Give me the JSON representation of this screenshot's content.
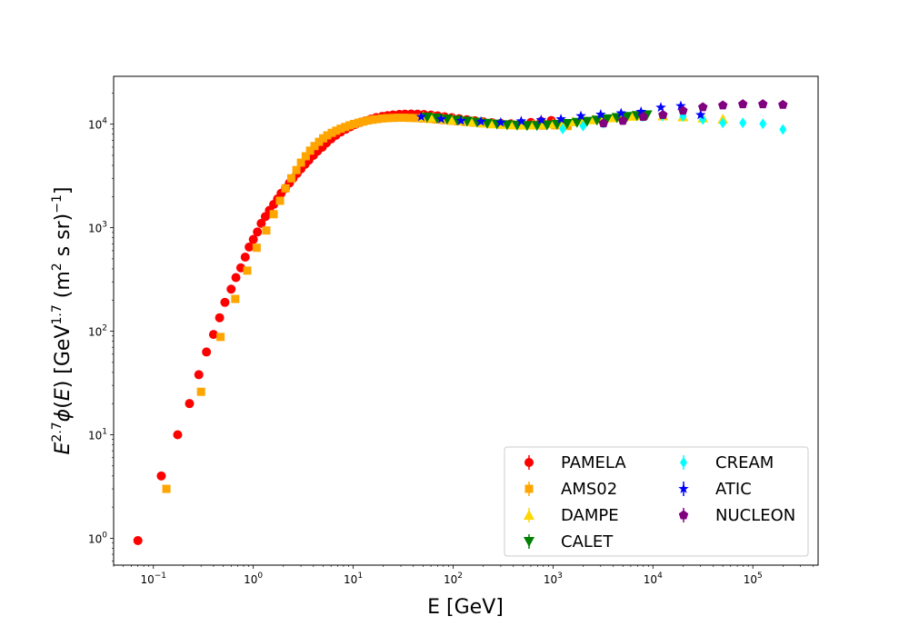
{
  "chart_data": {
    "type": "scatter",
    "xlabel": "E [GeV]",
    "ylabel": "E^{2.7}φ(E) [GeV^{1.7} (m^{2} s sr)^{-1}]",
    "xscale": "log",
    "yscale": "log",
    "xlim": [
      0.04,
      450000
    ],
    "ylim": [
      0.55,
      29000
    ],
    "x_ticks": [
      {
        "base": "10",
        "exp": "−1",
        "value": 0.1
      },
      {
        "base": "10",
        "exp": "0",
        "value": 1
      },
      {
        "base": "10",
        "exp": "1",
        "value": 10
      },
      {
        "base": "10",
        "exp": "2",
        "value": 100
      },
      {
        "base": "10",
        "exp": "3",
        "value": 1000
      },
      {
        "base": "10",
        "exp": "4",
        "value": 10000
      },
      {
        "base": "10",
        "exp": "5",
        "value": 100000
      }
    ],
    "y_ticks": [
      {
        "base": "10",
        "exp": "0",
        "value": 1
      },
      {
        "base": "10",
        "exp": "1",
        "value": 10
      },
      {
        "base": "10",
        "exp": "2",
        "value": 100
      },
      {
        "base": "10",
        "exp": "3",
        "value": 1000
      },
      {
        "base": "10",
        "exp": "4",
        "value": 10000
      }
    ],
    "grid": false,
    "legend_position": "lower-right",
    "legend_columns": 2,
    "series": [
      {
        "name": "PAMELA",
        "color": "#ff0000",
        "marker": "circle",
        "points": [
          [
            0.07,
            0.95
          ],
          [
            0.12,
            4
          ],
          [
            0.175,
            10
          ],
          [
            0.23,
            20
          ],
          [
            0.285,
            38
          ],
          [
            0.34,
            63
          ],
          [
            0.4,
            93
          ],
          [
            0.46,
            135
          ],
          [
            0.52,
            190
          ],
          [
            0.6,
            255
          ],
          [
            0.67,
            330
          ],
          [
            0.75,
            410
          ],
          [
            0.83,
            520
          ],
          [
            0.91,
            650
          ],
          [
            1.0,
            770
          ],
          [
            1.1,
            910
          ],
          [
            1.2,
            1100
          ],
          [
            1.32,
            1280
          ],
          [
            1.45,
            1470
          ],
          [
            1.6,
            1680
          ],
          [
            1.75,
            1900
          ],
          [
            1.9,
            2150
          ],
          [
            2.1,
            2400
          ],
          [
            2.3,
            2700
          ],
          [
            2.5,
            3000
          ],
          [
            2.75,
            3350
          ],
          [
            3.0,
            3700
          ],
          [
            3.3,
            4100
          ],
          [
            3.6,
            4500
          ],
          [
            4.0,
            5000
          ],
          [
            4.4,
            5500
          ],
          [
            4.9,
            6000
          ],
          [
            5.4,
            6600
          ],
          [
            6.0,
            7200
          ],
          [
            6.7,
            7800
          ],
          [
            7.5,
            8400
          ],
          [
            8.4,
            8950
          ],
          [
            9.4,
            9450
          ],
          [
            10.5,
            9950
          ],
          [
            11.8,
            10400
          ],
          [
            13.3,
            10800
          ],
          [
            15,
            11200
          ],
          [
            17,
            11600
          ],
          [
            19.5,
            11900
          ],
          [
            22,
            12100
          ],
          [
            25,
            12300
          ],
          [
            29,
            12450
          ],
          [
            33,
            12500
          ],
          [
            38,
            12550
          ],
          [
            44,
            12500
          ],
          [
            51,
            12400
          ],
          [
            60,
            12250
          ],
          [
            70,
            12050
          ],
          [
            82,
            11800
          ],
          [
            97,
            11550
          ],
          [
            115,
            11300
          ],
          [
            137,
            11050
          ],
          [
            165,
            10800
          ],
          [
            200,
            10550
          ],
          [
            245,
            10350
          ],
          [
            300,
            10200
          ],
          [
            380,
            10100
          ],
          [
            480,
            10150
          ],
          [
            600,
            10400
          ],
          [
            760,
            10650
          ],
          [
            960,
            10850
          ]
        ]
      },
      {
        "name": "AMS02",
        "color": "#ffa500",
        "marker": "square",
        "points": [
          [
            0.135,
            3
          ],
          [
            0.3,
            26
          ],
          [
            0.47,
            88
          ],
          [
            0.66,
            205
          ],
          [
            0.87,
            385
          ],
          [
            1.08,
            640
          ],
          [
            1.35,
            940
          ],
          [
            1.6,
            1350
          ],
          [
            1.85,
            1820
          ],
          [
            2.1,
            2400
          ],
          [
            2.4,
            3000
          ],
          [
            2.7,
            3600
          ],
          [
            3.0,
            4250
          ],
          [
            3.35,
            4900
          ],
          [
            3.7,
            5550
          ],
          [
            4.1,
            6150
          ],
          [
            4.55,
            6750
          ],
          [
            5.0,
            7300
          ],
          [
            5.5,
            7800
          ],
          [
            6.1,
            8250
          ],
          [
            6.75,
            8650
          ],
          [
            7.5,
            9050
          ],
          [
            8.3,
            9400
          ],
          [
            9.2,
            9750
          ],
          [
            10.2,
            10050
          ],
          [
            11.3,
            10350
          ],
          [
            12.6,
            10600
          ],
          [
            14,
            10850
          ],
          [
            15.6,
            11050
          ],
          [
            17.5,
            11200
          ],
          [
            19.6,
            11350
          ],
          [
            22,
            11450
          ],
          [
            25,
            11500
          ],
          [
            28,
            11550
          ],
          [
            32,
            11550
          ],
          [
            37,
            11500
          ],
          [
            43,
            11450
          ],
          [
            50,
            11350
          ],
          [
            58,
            11250
          ],
          [
            68,
            11100
          ],
          [
            80,
            10950
          ],
          [
            95,
            10800
          ],
          [
            112,
            10650
          ],
          [
            133,
            10500
          ],
          [
            160,
            10350
          ],
          [
            195,
            10200
          ],
          [
            240,
            10050
          ],
          [
            300,
            9950
          ],
          [
            380,
            9850
          ],
          [
            480,
            9800
          ],
          [
            620,
            9750
          ],
          [
            800,
            9700
          ],
          [
            1050,
            9750
          ],
          [
            1400,
            9600
          ]
        ]
      },
      {
        "name": "DAMPE",
        "color": "#ffd700",
        "marker": "triangle-up",
        "points": [
          [
            50,
            11800
          ],
          [
            63,
            11600
          ],
          [
            80,
            11300
          ],
          [
            100,
            11050
          ],
          [
            126,
            10800
          ],
          [
            158,
            10550
          ],
          [
            200,
            10300
          ],
          [
            251,
            10100
          ],
          [
            316,
            9950
          ],
          [
            398,
            9850
          ],
          [
            501,
            9800
          ],
          [
            631,
            9850
          ],
          [
            794,
            9950
          ],
          [
            1000,
            10100
          ],
          [
            1259,
            10300
          ],
          [
            1585,
            10550
          ],
          [
            1995,
            10800
          ],
          [
            2512,
            11050
          ],
          [
            3162,
            11300
          ],
          [
            3981,
            11550
          ],
          [
            5012,
            11750
          ],
          [
            6310,
            11950
          ],
          [
            7943,
            12100
          ],
          [
            12590,
            12050
          ],
          [
            19950,
            11800
          ],
          [
            31620,
            11500
          ],
          [
            50120,
            11200
          ]
        ]
      },
      {
        "name": "CALET",
        "color": "#008000",
        "marker": "triangle-down",
        "points": [
          [
            55,
            11700
          ],
          [
            69,
            11450
          ],
          [
            87,
            11200
          ],
          [
            110,
            10950
          ],
          [
            138,
            10700
          ],
          [
            174,
            10450
          ],
          [
            219,
            10200
          ],
          [
            275,
            10000
          ],
          [
            347,
            9850
          ],
          [
            437,
            9750
          ],
          [
            550,
            9700
          ],
          [
            692,
            9700
          ],
          [
            871,
            9800
          ],
          [
            1096,
            9950
          ],
          [
            1380,
            10150
          ],
          [
            1738,
            10400
          ],
          [
            2188,
            10650
          ],
          [
            2754,
            10950
          ],
          [
            3467,
            11250
          ],
          [
            4365,
            11550
          ],
          [
            5495,
            11850
          ],
          [
            6918,
            12100
          ],
          [
            8710,
            12300
          ]
        ]
      },
      {
        "name": "CREAM",
        "color": "#00ffff",
        "marker": "diamond",
        "points": [
          [
            1250,
            9000
          ],
          [
            2000,
            9600
          ],
          [
            3200,
            10200
          ],
          [
            5000,
            11000
          ],
          [
            7900,
            11800
          ],
          [
            12500,
            12000
          ],
          [
            20000,
            11900
          ],
          [
            31600,
            11100
          ],
          [
            50100,
            10300
          ],
          [
            79400,
            10300
          ],
          [
            126000,
            10100
          ],
          [
            200000,
            8900
          ]
        ]
      },
      {
        "name": "ATIC",
        "color": "#0000ff",
        "marker": "star",
        "points": [
          [
            48,
            11800
          ],
          [
            76,
            11200
          ],
          [
            120,
            10800
          ],
          [
            190,
            10600
          ],
          [
            300,
            10400
          ],
          [
            480,
            10700
          ],
          [
            760,
            11000
          ],
          [
            1200,
            11200
          ],
          [
            1900,
            12000
          ],
          [
            3000,
            12400
          ],
          [
            4800,
            12800
          ],
          [
            7600,
            13200
          ],
          [
            12000,
            14500
          ],
          [
            19000,
            15000
          ],
          [
            30000,
            12300
          ]
        ]
      },
      {
        "name": "NUCLEON",
        "color": "#800080",
        "marker": "pentagon",
        "points": [
          [
            3200,
            10200
          ],
          [
            5000,
            10800
          ],
          [
            8000,
            11800
          ],
          [
            12600,
            12300
          ],
          [
            20000,
            13500
          ],
          [
            31600,
            14600
          ],
          [
            50100,
            15200
          ],
          [
            79400,
            15600
          ],
          [
            126000,
            15600
          ],
          [
            200000,
            15400
          ]
        ]
      }
    ]
  }
}
